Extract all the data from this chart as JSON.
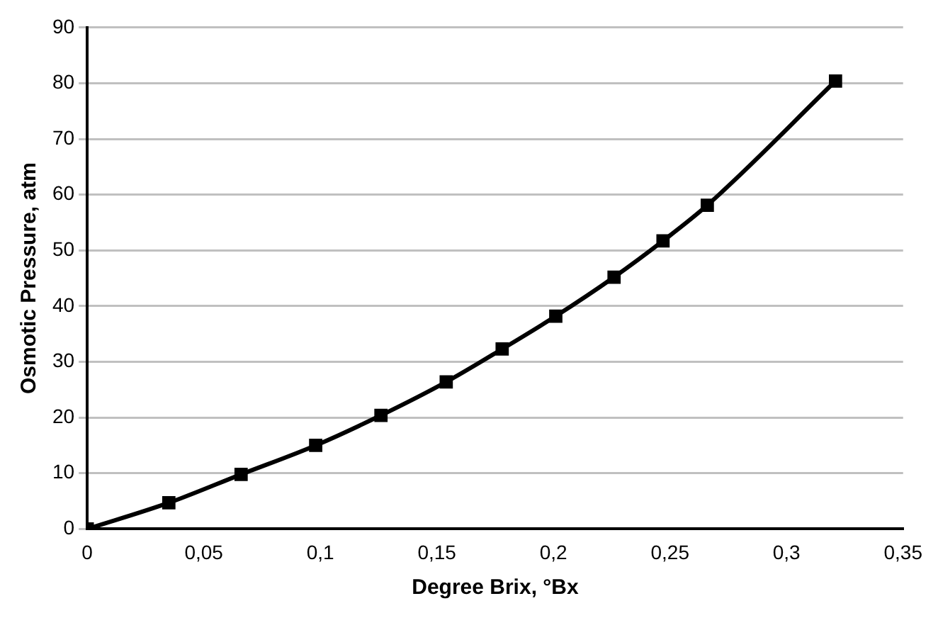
{
  "chart_data": {
    "type": "line",
    "xlabel": "Degree Brix, °Bx",
    "ylabel": "Osmotic Pressure, atm",
    "xlim": [
      0,
      0.35
    ],
    "xticks": [
      {
        "value": 0,
        "label": "0"
      },
      {
        "value": 0.05,
        "label": "0,05"
      },
      {
        "value": 0.1,
        "label": "0,1"
      },
      {
        "value": 0.15,
        "label": "0,15"
      },
      {
        "value": 0.2,
        "label": "0,2"
      },
      {
        "value": 0.25,
        "label": "0,25"
      },
      {
        "value": 0.3,
        "label": "0,3"
      },
      {
        "value": 0.35,
        "label": "0,35"
      }
    ],
    "ylim": [
      0,
      90
    ],
    "yticks": [
      0,
      10,
      20,
      30,
      40,
      50,
      60,
      70,
      80,
      90
    ],
    "grid": "y",
    "legend": false,
    "series": [
      {
        "color": "#000000",
        "marker": "square",
        "x": [
          0,
          0.035,
          0.066,
          0.098,
          0.126,
          0.154,
          0.178,
          0.201,
          0.226,
          0.247,
          0.266,
          0.321
        ],
        "values": [
          0,
          4.7,
          9.8,
          15.0,
          20.4,
          26.4,
          32.3,
          38.2,
          45.2,
          51.7,
          58.1,
          80.4
        ]
      }
    ]
  }
}
